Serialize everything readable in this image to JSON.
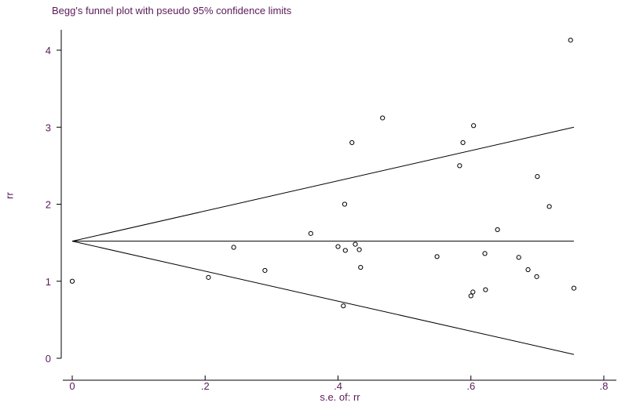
{
  "chart_data": {
    "type": "scatter",
    "title": "Begg's funnel plot with pseudo 95% confidence limits",
    "xlabel": "s.e. of: rr",
    "ylabel": "rr",
    "xlim": [
      0,
      0.8
    ],
    "ylim": [
      0,
      4
    ],
    "x_ticks": [
      0,
      0.2,
      0.4,
      0.6,
      0.8
    ],
    "x_tick_labels": [
      "0",
      ".2",
      ".4",
      ".6",
      ".8"
    ],
    "y_ticks": [
      0,
      1,
      2,
      3,
      4
    ],
    "y_tick_labels": [
      "0",
      "1",
      "2",
      "3",
      "4"
    ],
    "grid": false,
    "pooled_estimate": 1.52,
    "funnel": {
      "apex_x": 0,
      "max_x": 0.755,
      "upper_end_y": 3.0,
      "lower_end_y": 0.05
    },
    "points": [
      {
        "x": 0.0,
        "y": 1.0
      },
      {
        "x": 0.205,
        "y": 1.05
      },
      {
        "x": 0.243,
        "y": 1.44
      },
      {
        "x": 0.29,
        "y": 1.14
      },
      {
        "x": 0.359,
        "y": 1.62
      },
      {
        "x": 0.4,
        "y": 1.45
      },
      {
        "x": 0.408,
        "y": 0.68
      },
      {
        "x": 0.41,
        "y": 2.0
      },
      {
        "x": 0.411,
        "y": 1.4
      },
      {
        "x": 0.421,
        "y": 2.8
      },
      {
        "x": 0.426,
        "y": 1.48
      },
      {
        "x": 0.432,
        "y": 1.41
      },
      {
        "x": 0.434,
        "y": 1.18
      },
      {
        "x": 0.467,
        "y": 3.12
      },
      {
        "x": 0.549,
        "y": 1.32
      },
      {
        "x": 0.583,
        "y": 2.5
      },
      {
        "x": 0.588,
        "y": 2.8
      },
      {
        "x": 0.6,
        "y": 0.81
      },
      {
        "x": 0.603,
        "y": 0.86
      },
      {
        "x": 0.604,
        "y": 3.02
      },
      {
        "x": 0.621,
        "y": 1.36
      },
      {
        "x": 0.622,
        "y": 0.89
      },
      {
        "x": 0.64,
        "y": 1.67
      },
      {
        "x": 0.672,
        "y": 1.31
      },
      {
        "x": 0.686,
        "y": 1.15
      },
      {
        "x": 0.699,
        "y": 1.06
      },
      {
        "x": 0.7,
        "y": 2.36
      },
      {
        "x": 0.718,
        "y": 1.97
      },
      {
        "x": 0.75,
        "y": 4.13
      },
      {
        "x": 0.755,
        "y": 0.91
      }
    ]
  }
}
